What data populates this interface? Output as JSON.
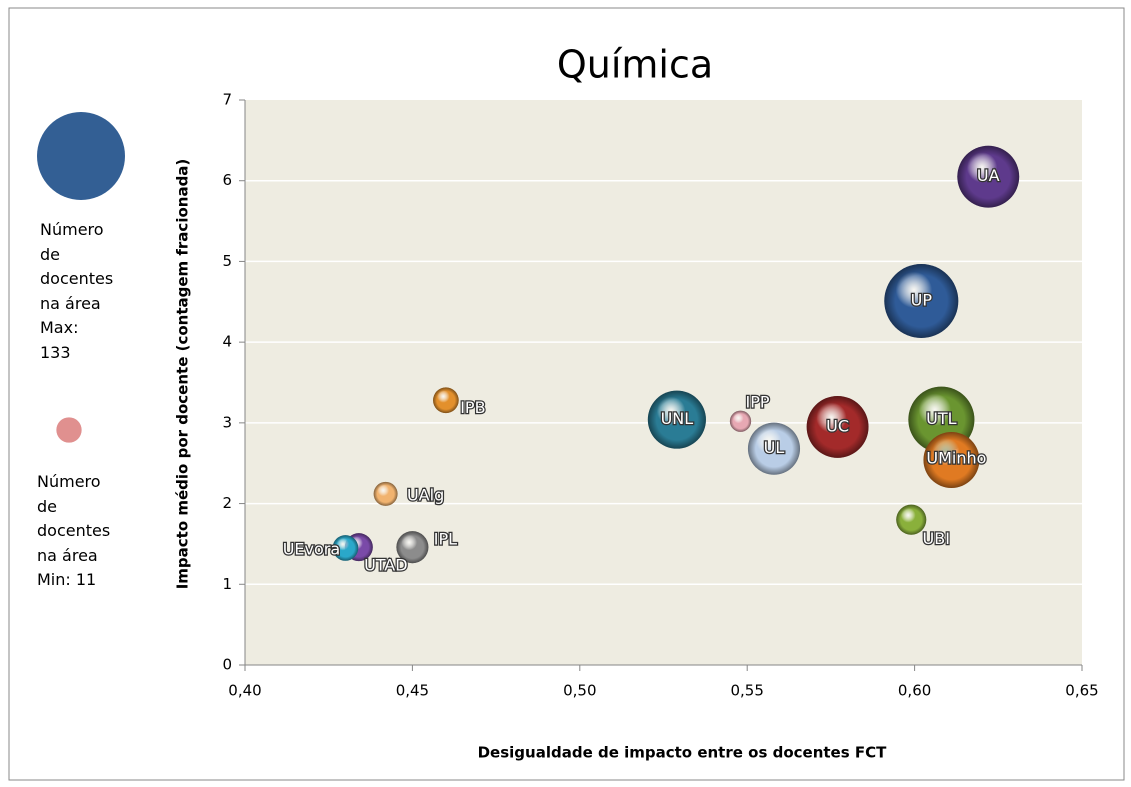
{
  "chart_data": {
    "type": "bubble",
    "title": "Química",
    "xlabel": "Desigualdade de impacto entre os docentes FCT",
    "ylabel": "Impacto  médio por docente (contagem fracionada)",
    "labels": [
      "UA",
      "UP",
      "UTL",
      "UMinho",
      "UBI",
      "UC",
      "UL",
      "IPP",
      "UNL",
      "IPB",
      "UAlg",
      "IPL",
      "UTAD",
      "UEvora"
    ],
    "x": [
      0.622,
      0.602,
      0.608,
      0.611,
      0.599,
      0.577,
      0.558,
      0.548,
      0.529,
      0.46,
      0.442,
      0.45,
      0.434,
      0.43
    ],
    "values": [
      6.05,
      4.51,
      3.04,
      2.54,
      1.8,
      2.95,
      2.68,
      3.02,
      3.04,
      3.28,
      2.12,
      1.46,
      1.46,
      1.45
    ],
    "sizes": [
      93,
      133,
      106,
      76,
      22,
      93,
      66,
      11,
      82,
      16,
      14,
      25,
      19,
      16
    ],
    "colors": [
      "#5e3a8c",
      "#2f5b98",
      "#6a9530",
      "#e07a22",
      "#8ab03b",
      "#a32a2a",
      "#b9cde6",
      "#e7a8b3",
      "#2a7c95",
      "#e3902c",
      "#f1b36f",
      "#8c8c8c",
      "#7a4aa8",
      "#2aa8ca"
    ],
    "xlim": [
      0.4,
      0.65
    ],
    "xticks": [
      {
        "value": 0.4,
        "label": "0,40"
      },
      {
        "value": 0.45,
        "label": "0,45"
      },
      {
        "value": 0.5,
        "label": "0,50"
      },
      {
        "value": 0.55,
        "label": "0,55"
      },
      {
        "value": 0.6,
        "label": "0,60"
      },
      {
        "value": 0.65,
        "label": "0,65"
      }
    ],
    "ylim": [
      0,
      7
    ],
    "yticks": [
      0,
      1,
      2,
      3,
      4,
      5,
      6,
      7
    ],
    "grid": true,
    "size_legend": [
      {
        "label": "Número de docentes na área",
        "value_label": "Max: 133",
        "value": 133,
        "color": "#335f94"
      },
      {
        "label": "Número de docentes na área",
        "value_label": "Min: 11",
        "value": 11,
        "color": "#e0908f"
      }
    ]
  }
}
